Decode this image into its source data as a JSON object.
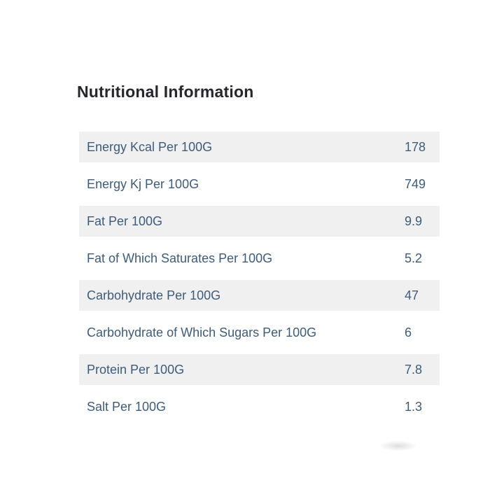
{
  "title": "Nutritional Information",
  "table": {
    "rows": [
      {
        "label": "Energy Kcal Per 100G",
        "value": "178"
      },
      {
        "label": "Energy Kj Per 100G",
        "value": "749"
      },
      {
        "label": "Fat Per 100G",
        "value": "9.9"
      },
      {
        "label": "Fat of Which Saturates Per 100G",
        "value": "5.2"
      },
      {
        "label": "Carbohydrate Per 100G",
        "value": "47"
      },
      {
        "label": "Carbohydrate of Which Sugars Per 100G",
        "value": "6"
      },
      {
        "label": "Protein Per 100G",
        "value": "7.8"
      },
      {
        "label": "Salt Per 100G",
        "value": "1.3"
      }
    ],
    "colors": {
      "stripe_background": "#f0f0f1",
      "row_text": "#3d5c7a",
      "title_text": "#26262e",
      "page_background": "#ffffff"
    }
  }
}
